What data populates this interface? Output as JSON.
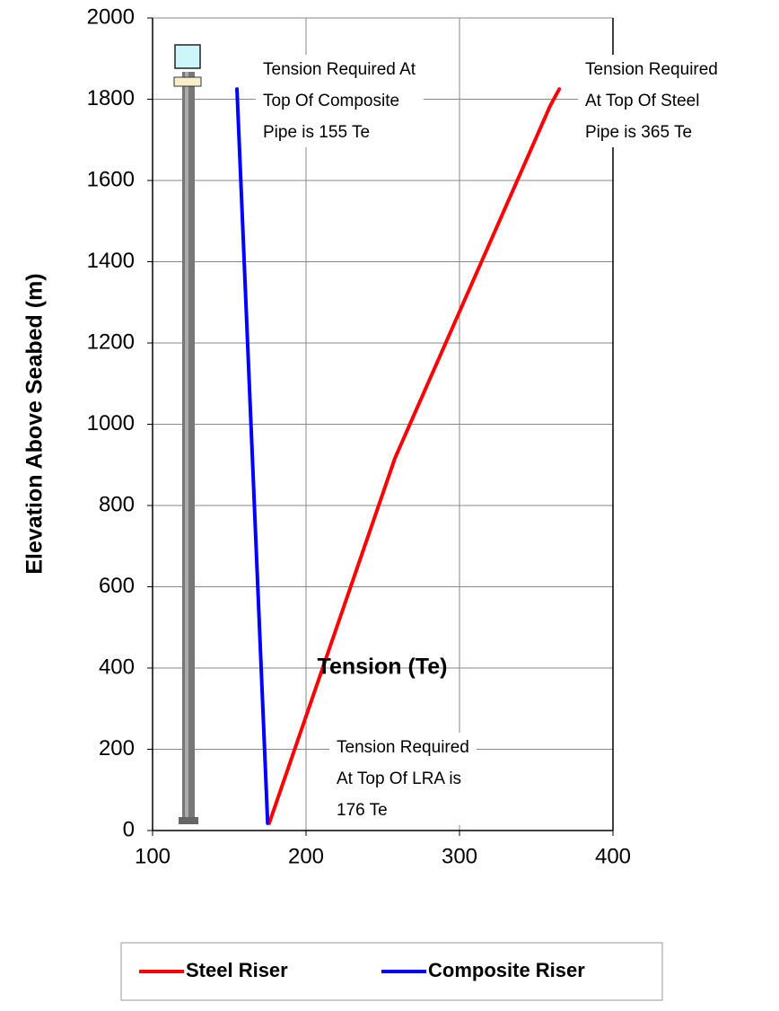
{
  "chart_data": {
    "type": "line",
    "x_label": "Tension (Te)",
    "y_label": "Elevation Above Seabed (m)",
    "xlim": [
      100,
      400
    ],
    "xticks": [
      100,
      200,
      300,
      400
    ],
    "ylim": [
      0,
      2000
    ],
    "yticks": [
      0,
      200,
      400,
      600,
      800,
      1000,
      1200,
      1400,
      1600,
      1800,
      2000
    ],
    "grid": true,
    "legend": "bottom",
    "series": [
      {
        "name": "Steel Riser",
        "color": "#ff0000",
        "x": [
          176,
          258,
          359,
          365
        ],
        "values": [
          18,
          917,
          1783,
          1825
        ]
      },
      {
        "name": "Composite Riser",
        "color": "#0000ff",
        "x": [
          155,
          175
        ],
        "values": [
          1825,
          18
        ]
      }
    ],
    "annotations": [
      {
        "lines": [
          "Tension Required At",
          "Top Of Composite",
          "Pipe is 155 Te"
        ]
      },
      {
        "lines": [
          "Tension Required",
          "At Top Of Steel",
          "Pipe is 365 Te"
        ]
      },
      {
        "lines": [
          "Tension Required",
          "At Top Of LRA is",
          "176 Te"
        ]
      }
    ]
  }
}
